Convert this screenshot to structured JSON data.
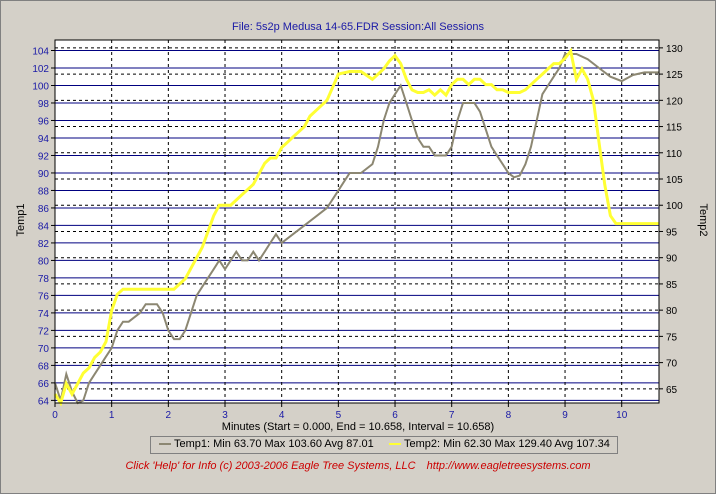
{
  "header": {
    "title": "File: 5s2p Medusa 14-65.FDR   Session:All Sessions"
  },
  "chart_data": {
    "type": "line",
    "xlabel": "Minutes (Start = 0.000,  End = 10.658,  Interval =  10.658)",
    "ylabel": "Temp1",
    "y2label": "Temp2",
    "xlim": [
      0,
      10.658
    ],
    "ylim": [
      63.7,
      105.2
    ],
    "y2lim": [
      62.3,
      131.5
    ],
    "x_ticks": [
      0,
      1,
      2,
      3,
      4,
      5,
      6,
      7,
      8,
      9,
      10
    ],
    "y_ticks": [
      64,
      66,
      68,
      70,
      72,
      74,
      76,
      78,
      80,
      82,
      84,
      86,
      88,
      90,
      92,
      94,
      96,
      98,
      100,
      102,
      104
    ],
    "y2_ticks": [
      65,
      70,
      75,
      80,
      85,
      90,
      95,
      100,
      105,
      110,
      115,
      120,
      125,
      130
    ],
    "grid": true,
    "colors": {
      "plot_bg": "#ffffff",
      "grid_major": "#000080",
      "grid_dashed": "#000000",
      "temp1": "#8c8772",
      "temp2": "#ffff33"
    },
    "series": [
      {
        "name": "Temp1",
        "axis": "left",
        "x": [
          0,
          0.1,
          0.2,
          0.3,
          0.4,
          0.5,
          0.6,
          0.7,
          0.8,
          0.9,
          1.0,
          1.1,
          1.2,
          1.3,
          1.4,
          1.5,
          1.6,
          1.7,
          1.8,
          1.9,
          2.0,
          2.1,
          2.2,
          2.3,
          2.4,
          2.5,
          2.6,
          2.7,
          2.8,
          2.9,
          3.0,
          3.1,
          3.2,
          3.3,
          3.4,
          3.5,
          3.6,
          3.7,
          3.8,
          3.9,
          4.0,
          4.2,
          4.4,
          4.6,
          4.8,
          5.0,
          5.1,
          5.2,
          5.4,
          5.6,
          5.7,
          5.8,
          5.9,
          6.0,
          6.1,
          6.2,
          6.3,
          6.4,
          6.5,
          6.6,
          6.7,
          6.8,
          6.9,
          7.0,
          7.1,
          7.2,
          7.3,
          7.4,
          7.5,
          7.6,
          7.7,
          7.8,
          7.9,
          8.0,
          8.1,
          8.2,
          8.3,
          8.4,
          8.5,
          8.6,
          8.7,
          8.8,
          8.9,
          9.0,
          9.2,
          9.4,
          9.6,
          9.8,
          10.0,
          10.2,
          10.4,
          10.658
        ],
        "values": [
          66,
          64,
          67,
          65,
          63.7,
          64,
          66,
          67,
          68,
          69,
          70,
          72,
          73,
          73,
          73.5,
          74,
          75,
          75,
          75,
          74,
          72,
          71,
          71,
          72,
          74,
          76,
          77,
          78,
          79,
          80,
          79,
          80,
          81,
          80,
          80,
          81,
          80,
          81,
          82,
          83,
          82,
          83,
          84,
          85,
          86,
          88,
          89,
          90,
          90,
          91,
          93,
          96,
          98,
          99,
          100,
          98,
          96,
          94,
          93,
          93,
          92,
          92,
          92,
          93,
          96,
          98,
          98,
          98,
          97,
          95,
          93,
          92,
          91,
          90,
          89.5,
          89.7,
          91,
          93,
          96,
          99,
          100,
          101,
          102,
          103.6,
          103.6,
          103,
          102,
          101,
          100.5,
          101.2,
          101.5,
          101.5
        ]
      },
      {
        "name": "Temp2",
        "axis": "right",
        "x": [
          0,
          0.1,
          0.2,
          0.3,
          0.4,
          0.5,
          0.6,
          0.7,
          0.8,
          0.9,
          1.0,
          1.1,
          1.2,
          1.3,
          1.4,
          1.5,
          1.6,
          1.7,
          1.8,
          1.9,
          2.0,
          2.1,
          2.2,
          2.3,
          2.4,
          2.5,
          2.6,
          2.7,
          2.8,
          2.9,
          3.0,
          3.1,
          3.2,
          3.3,
          3.4,
          3.5,
          3.6,
          3.7,
          3.8,
          3.9,
          4.0,
          4.1,
          4.2,
          4.3,
          4.4,
          4.5,
          4.6,
          4.8,
          5.0,
          5.2,
          5.4,
          5.6,
          5.8,
          5.9,
          6.0,
          6.1,
          6.2,
          6.3,
          6.4,
          6.5,
          6.6,
          6.7,
          6.8,
          6.9,
          7.0,
          7.1,
          7.2,
          7.3,
          7.4,
          7.5,
          7.6,
          7.7,
          7.8,
          7.9,
          8.0,
          8.1,
          8.2,
          8.3,
          8.4,
          8.5,
          8.6,
          8.7,
          8.8,
          8.9,
          9.0,
          9.1,
          9.2,
          9.3,
          9.4,
          9.5,
          9.6,
          9.7,
          9.8,
          9.9,
          10.0,
          10.658
        ],
        "values": [
          64,
          62.3,
          66,
          64,
          66,
          68,
          69,
          71,
          72,
          74,
          80,
          83,
          84,
          84,
          84,
          84,
          84,
          84,
          84,
          84,
          84,
          84,
          85,
          86,
          88,
          90,
          92,
          95,
          98,
          100,
          100,
          100,
          101,
          102,
          103,
          104,
          106,
          108,
          109,
          109,
          111,
          112,
          113,
          114,
          115,
          117,
          118,
          120,
          125,
          125.5,
          125.5,
          124,
          126,
          127.5,
          128.5,
          127,
          124,
          122,
          121.5,
          121.5,
          122,
          121,
          122,
          121,
          123,
          124,
          124,
          123,
          124,
          124,
          123,
          123,
          122,
          122,
          121.5,
          121.5,
          121.5,
          122,
          123,
          124,
          125,
          126,
          127,
          127,
          128,
          129.4,
          124,
          126,
          124,
          120,
          112,
          104,
          98,
          96.5,
          96.5,
          96.5
        ]
      }
    ]
  },
  "legend": {
    "temp1_label": "Temp1:  Min 63.70 Max 103.60 Avg 87.01",
    "temp2_label": "Temp2:  Min 62.30 Max 129.40 Avg 107.34"
  },
  "footer": {
    "info": "Click 'Help' for Info  (c) 2003-2006 Eagle Tree Systems, LLC",
    "url": "http://www.eagletreesystems.com"
  }
}
